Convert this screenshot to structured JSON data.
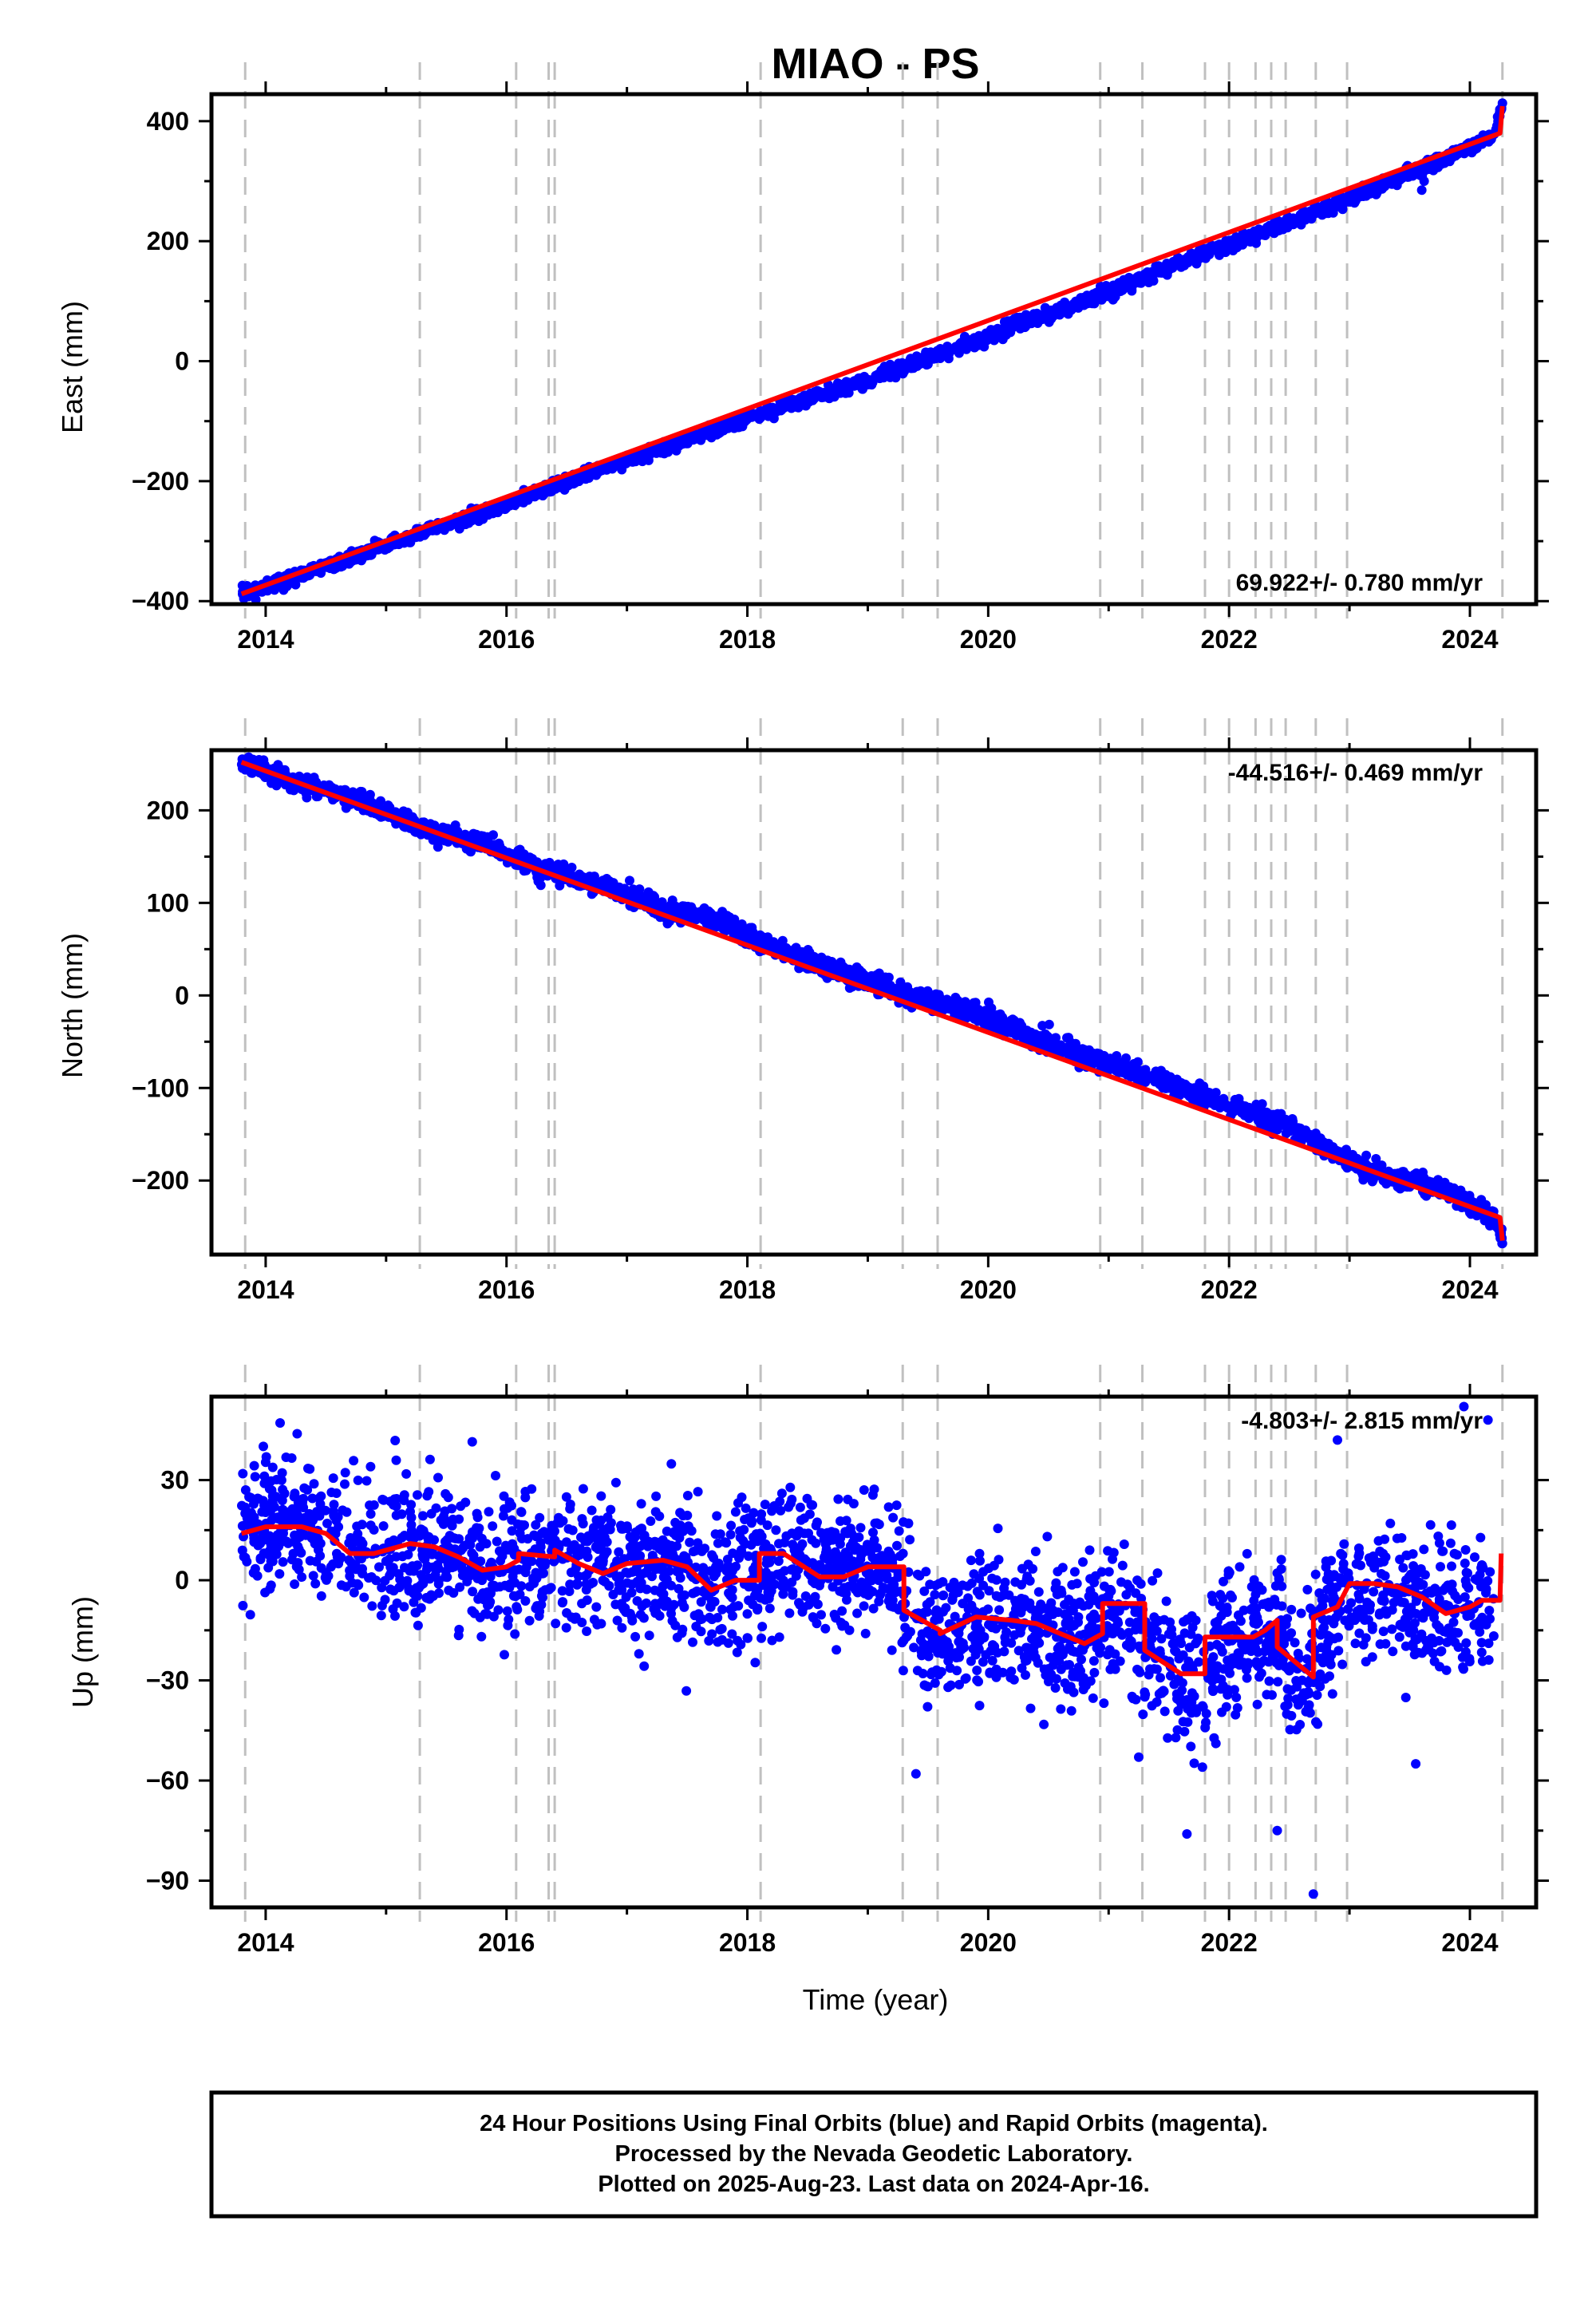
{
  "title": "MIAO - PS",
  "caption": {
    "lines": [
      "24 Hour Positions Using Final Orbits (blue) and Rapid Orbits (magenta).",
      "Processed by the Nevada Geodetic Laboratory.",
      "Plotted on 2025-Aug-23. Last data on 2024-Apr-16."
    ]
  },
  "colors": {
    "final_points": "#0000ff",
    "model_line": "#ff0000",
    "event_lines": "#c0c0c0",
    "frame": "#000000"
  },
  "chart_data": [
    {
      "type": "scatter",
      "component": "east",
      "ylabel": "East (mm)",
      "xlabel": "",
      "xlim": [
        2013.55,
        2024.55
      ],
      "ylim": [
        -405,
        445
      ],
      "xticks": [
        2014,
        2016,
        2018,
        2020,
        2022,
        2024
      ],
      "xtick_labels": [
        "2014",
        "2016",
        "2018",
        "2020",
        "2022",
        "2024"
      ],
      "yticks": [
        -400,
        -200,
        0,
        200,
        400
      ],
      "ytick_labels": [
        "−400",
        "−200",
        "0",
        "200",
        "400"
      ],
      "rate_label": "69.922+/- 0.780 mm/yr",
      "grid": false,
      "model": [
        [
          2013.8,
          -388
        ],
        [
          2024.25,
          380
        ],
        [
          2024.27,
          425
        ]
      ],
      "samples": [
        [
          2013.8,
          -388
        ],
        [
          2014.3,
          -355
        ],
        [
          2014.8,
          -322
        ],
        [
          2015.3,
          -285
        ],
        [
          2015.8,
          -255
        ],
        [
          2016.3,
          -215
        ],
        [
          2016.8,
          -180
        ],
        [
          2017.3,
          -145
        ],
        [
          2017.8,
          -110
        ],
        [
          2018.3,
          -75
        ],
        [
          2018.8,
          -45
        ],
        [
          2019.3,
          -10
        ],
        [
          2019.8,
          25
        ],
        [
          2020.3,
          65
        ],
        [
          2020.8,
          100
        ],
        [
          2021.3,
          140
        ],
        [
          2021.8,
          180
        ],
        [
          2022.3,
          215
        ],
        [
          2022.8,
          255
        ],
        [
          2023.3,
          295
        ],
        [
          2023.8,
          340
        ],
        [
          2024.2,
          375
        ],
        [
          2024.27,
          425
        ]
      ],
      "outliers": [
        [
          2023.6,
          285
        ],
        [
          2023.62,
          300
        ],
        [
          2024.27,
          430
        ]
      ]
    },
    {
      "type": "scatter",
      "component": "north",
      "ylabel": "North (mm)",
      "xlabel": "",
      "xlim": [
        2013.55,
        2024.55
      ],
      "ylim": [
        -280,
        265
      ],
      "xticks": [
        2014,
        2016,
        2018,
        2020,
        2022,
        2024
      ],
      "xtick_labels": [
        "2014",
        "2016",
        "2018",
        "2020",
        "2022",
        "2024"
      ],
      "yticks": [
        -200,
        -100,
        0,
        100,
        200
      ],
      "ytick_labels": [
        "−200",
        "−100",
        "0",
        "100",
        "200"
      ],
      "rate_label": "-44.516+/- 0.469 mm/yr",
      "grid": false,
      "model": [
        [
          2013.8,
          252
        ],
        [
          2024.25,
          -240
        ],
        [
          2024.27,
          -265
        ]
      ],
      "samples": [
        [
          2013.8,
          252
        ],
        [
          2014.3,
          228
        ],
        [
          2014.8,
          210
        ],
        [
          2015.3,
          180
        ],
        [
          2015.8,
          165
        ],
        [
          2016.3,
          135
        ],
        [
          2016.8,
          120
        ],
        [
          2017.3,
          92
        ],
        [
          2017.8,
          80
        ],
        [
          2018.1,
          55
        ],
        [
          2018.5,
          38
        ],
        [
          2019.0,
          15
        ],
        [
          2019.5,
          -5
        ],
        [
          2020.0,
          -25
        ],
        [
          2020.5,
          -50
        ],
        [
          2021.0,
          -75
        ],
        [
          2021.5,
          -95
        ],
        [
          2022.0,
          -120
        ],
        [
          2022.5,
          -140
        ],
        [
          2022.8,
          -165
        ],
        [
          2023.3,
          -195
        ],
        [
          2023.8,
          -210
        ],
        [
          2024.2,
          -240
        ],
        [
          2024.27,
          -265
        ]
      ],
      "outliers": [
        [
          2024.27,
          -268
        ],
        [
          2013.82,
          255
        ]
      ]
    },
    {
      "type": "scatter",
      "component": "up",
      "ylabel": "Up (mm)",
      "xlabel": "Time (year)",
      "xlim": [
        2013.55,
        2024.55
      ],
      "ylim": [
        -98,
        55
      ],
      "xticks": [
        2014,
        2016,
        2018,
        2020,
        2022,
        2024
      ],
      "xtick_labels": [
        "2014",
        "2016",
        "2018",
        "2020",
        "2022",
        "2024"
      ],
      "yticks": [
        -90,
        -60,
        -30,
        0,
        30
      ],
      "ytick_labels": [
        "−90",
        "−60",
        "−30",
        "0",
        "30"
      ],
      "rate_label": "-4.803+/- 2.815 mm/yr",
      "grid": false,
      "model": [
        [
          2013.8,
          14
        ],
        [
          2014.0,
          16
        ],
        [
          2014.3,
          16
        ],
        [
          2014.5,
          14
        ],
        [
          2014.7,
          8
        ],
        [
          2014.9,
          8
        ],
        [
          2015.2,
          11
        ],
        [
          2015.4,
          10
        ],
        [
          2015.6,
          7
        ],
        [
          2015.8,
          3
        ],
        [
          2016.0,
          4
        ],
        [
          2016.1,
          6
        ],
        [
          2016.1,
          8
        ],
        [
          2016.4,
          7
        ],
        [
          2016.4,
          9
        ],
        [
          2016.6,
          5
        ],
        [
          2016.8,
          2
        ],
        [
          2017.0,
          5
        ],
        [
          2017.3,
          6
        ],
        [
          2017.5,
          4
        ],
        [
          2017.7,
          -3
        ],
        [
          2017.9,
          0
        ],
        [
          2018.1,
          0
        ],
        [
          2018.1,
          8
        ],
        [
          2018.3,
          8
        ],
        [
          2018.6,
          1
        ],
        [
          2018.8,
          1
        ],
        [
          2019.0,
          4
        ],
        [
          2019.3,
          4
        ],
        [
          2019.3,
          -9
        ],
        [
          2019.6,
          -15
        ],
        [
          2019.6,
          -16
        ],
        [
          2019.9,
          -11
        ],
        [
          2020.2,
          -12
        ],
        [
          2020.4,
          -13
        ],
        [
          2020.6,
          -16
        ],
        [
          2020.8,
          -19
        ],
        [
          2020.95,
          -16
        ],
        [
          2020.95,
          -7
        ],
        [
          2021.3,
          -7
        ],
        [
          2021.3,
          -21
        ],
        [
          2021.6,
          -28
        ],
        [
          2021.8,
          -28
        ],
        [
          2021.8,
          -17
        ],
        [
          2022.2,
          -17
        ],
        [
          2022.3,
          -15
        ],
        [
          2022.4,
          -12
        ],
        [
          2022.4,
          -20
        ],
        [
          2022.6,
          -26
        ],
        [
          2022.7,
          -29
        ],
        [
          2022.7,
          -11
        ],
        [
          2022.9,
          -8
        ],
        [
          2023.0,
          -1
        ],
        [
          2023.2,
          -1
        ],
        [
          2023.4,
          -2
        ],
        [
          2023.6,
          -5
        ],
        [
          2023.8,
          -10
        ],
        [
          2024.0,
          -8
        ],
        [
          2024.1,
          -6
        ],
        [
          2024.25,
          -6
        ],
        [
          2024.26,
          8
        ]
      ],
      "samples": [
        [
          2013.8,
          15
        ],
        [
          2014.2,
          18
        ],
        [
          2014.6,
          12
        ],
        [
          2015.0,
          9
        ],
        [
          2015.4,
          8
        ],
        [
          2015.8,
          5
        ],
        [
          2016.2,
          7
        ],
        [
          2016.6,
          5
        ],
        [
          2017.0,
          4
        ],
        [
          2017.4,
          3
        ],
        [
          2017.7,
          -4
        ],
        [
          2018.0,
          1
        ],
        [
          2018.4,
          6
        ],
        [
          2018.8,
          2
        ],
        [
          2019.2,
          3
        ],
        [
          2019.5,
          -18
        ],
        [
          2019.8,
          -14
        ],
        [
          2020.2,
          -12
        ],
        [
          2020.6,
          -17
        ],
        [
          2021.0,
          -9
        ],
        [
          2021.4,
          -24
        ],
        [
          2021.7,
          -30
        ],
        [
          2022.0,
          -17
        ],
        [
          2022.4,
          -16
        ],
        [
          2022.6,
          -27
        ],
        [
          2022.9,
          -9
        ],
        [
          2023.2,
          -2
        ],
        [
          2023.6,
          -8
        ],
        [
          2023.9,
          -10
        ],
        [
          2024.2,
          -5
        ]
      ],
      "outliers": [
        [
          2021.65,
          -76
        ],
        [
          2022.4,
          -75
        ],
        [
          2022.7,
          -94
        ],
        [
          2022.9,
          42
        ],
        [
          2023.95,
          52
        ],
        [
          2024.15,
          48
        ],
        [
          2019.4,
          -58
        ],
        [
          2023.55,
          -55
        ],
        [
          2021.25,
          -53
        ]
      ]
    }
  ],
  "event_lines_x": [
    2013.83,
    2015.28,
    2016.08,
    2016.35,
    2016.4,
    2018.11,
    2019.29,
    2019.58,
    2020.93,
    2021.28,
    2021.8,
    2022.0,
    2022.22,
    2022.35,
    2022.47,
    2022.72,
    2022.98,
    2024.27
  ]
}
